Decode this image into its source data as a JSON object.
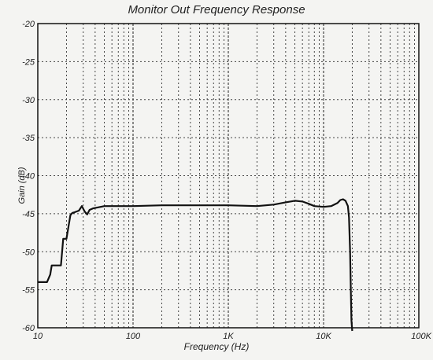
{
  "chart_data": {
    "type": "line",
    "title": "Monitor Out Frequency Response",
    "xlabel": "Frequency (Hz)",
    "ylabel": "Gain (dB)",
    "x_scale": "log",
    "xlim": [
      10,
      100000
    ],
    "ylim": [
      -60,
      -20
    ],
    "grid": true,
    "x_ticks": [
      {
        "value": 10,
        "label": "10"
      },
      {
        "value": 100,
        "label": "100"
      },
      {
        "value": 1000,
        "label": "1K"
      },
      {
        "value": 10000,
        "label": "10K"
      },
      {
        "value": 100000,
        "label": "100K"
      }
    ],
    "y_ticks": [
      {
        "value": -20,
        "label": "-20"
      },
      {
        "value": -25,
        "label": "-25"
      },
      {
        "value": -30,
        "label": "-30"
      },
      {
        "value": -35,
        "label": "-35"
      },
      {
        "value": -40,
        "label": "-40"
      },
      {
        "value": -45,
        "label": "-45"
      },
      {
        "value": -50,
        "label": "-50"
      },
      {
        "value": -55,
        "label": "-55"
      },
      {
        "value": -60,
        "label": "-60"
      }
    ],
    "series": [
      {
        "x": [
          10,
          12.5,
          13.5,
          14,
          16,
          17.5,
          18.5,
          20,
          22,
          23,
          24.5,
          27,
          29,
          31,
          33,
          35,
          38,
          42,
          50,
          60,
          80,
          100,
          200,
          500,
          1000,
          2000,
          3000,
          4000,
          5000,
          6000,
          7000,
          8000,
          10000,
          12000,
          14000,
          15000,
          16000,
          17000,
          18000,
          18500,
          19000,
          19300,
          19600,
          20000
        ],
        "y": [
          -54,
          -54,
          -53,
          -51.8,
          -51.8,
          -51.8,
          -48.3,
          -48.3,
          -45.2,
          -44.9,
          -44.8,
          -44.6,
          -44.0,
          -44.7,
          -45.1,
          -44.5,
          -44.3,
          -44.2,
          -44.0,
          -44.0,
          -44.0,
          -44.0,
          -43.9,
          -43.9,
          -43.9,
          -44.0,
          -43.8,
          -43.5,
          -43.3,
          -43.4,
          -43.7,
          -44.0,
          -44.1,
          -44.0,
          -43.6,
          -43.2,
          -43.1,
          -43.3,
          -44.0,
          -45.5,
          -50,
          -55,
          -59,
          -61
        ]
      }
    ]
  }
}
